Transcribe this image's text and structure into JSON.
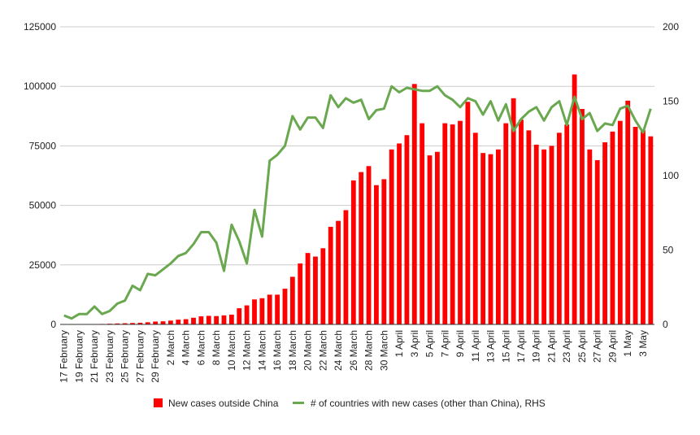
{
  "chart_data": {
    "type": "bar",
    "title": "",
    "xlabel": "",
    "ylabel": "",
    "ylabel_right": "",
    "ylim": [
      0,
      125000
    ],
    "y2lim": [
      0,
      200
    ],
    "y_ticks": [
      "0",
      "25000",
      "50000",
      "75000",
      "100000",
      "125000"
    ],
    "y2_ticks": [
      "0",
      "50",
      "100",
      "150",
      "200"
    ],
    "grid": true,
    "legend_position": "bottom",
    "categories": [
      "17 February",
      "18 February",
      "19 February",
      "20 February",
      "21 February",
      "22 February",
      "23 February",
      "24 February",
      "25 February",
      "26 February",
      "27 February",
      "28 February",
      "29 February",
      "1 March",
      "2 March",
      "3 March",
      "4 March",
      "5 March",
      "6 March",
      "7 March",
      "8 March",
      "9 March",
      "10 March",
      "11 March",
      "12 March",
      "13 March",
      "14 March",
      "15 March",
      "16 March",
      "17 March",
      "18 March",
      "19 March",
      "20 March",
      "21 March",
      "22 March",
      "23 March",
      "24 March",
      "25 March",
      "26 March",
      "27 March",
      "28 March",
      "29 March",
      "30 March",
      "31 March",
      "1 April",
      "2 April",
      "3 April",
      "4 April",
      "5 April",
      "6 April",
      "7 April",
      "8 April",
      "9 April",
      "10 April",
      "11 April",
      "12 April",
      "13 April",
      "14 April",
      "15 April",
      "16 April",
      "17 April",
      "18 April",
      "19 April",
      "20 April",
      "21 April",
      "22 April",
      "23 April",
      "24 April",
      "25 April",
      "26 April",
      "27 April",
      "28 April",
      "29 April",
      "30 April",
      "1 May",
      "2 May",
      "3 May",
      "4 May"
    ],
    "shown_x_labels": [
      "17 February",
      "19 February",
      "21 February",
      "23 February",
      "25 February",
      "27 February",
      "29 February",
      "2 March",
      "4 March",
      "6 March",
      "8 March",
      "10 March",
      "12 March",
      "14 March",
      "16 March",
      "18 March",
      "20 March",
      "22 March",
      "24 March",
      "26 March",
      "28 March",
      "30 March",
      "1 April",
      "3 April",
      "5 April",
      "7 April",
      "9 April",
      "11 April",
      "13 April",
      "15 April",
      "17 April",
      "19 April",
      "21 April",
      "23 April",
      "25 April",
      "27 April",
      "29 April",
      "1 May",
      "3 May"
    ],
    "series": [
      {
        "name": "New cases outside China",
        "type": "bar",
        "axis": "left",
        "color": "#ff0000",
        "values": [
          50,
          60,
          80,
          100,
          150,
          200,
          300,
          400,
          500,
          600,
          700,
          900,
          1200,
          1300,
          1600,
          2000,
          2200,
          2800,
          3400,
          3600,
          3500,
          3800,
          4100,
          6800,
          8000,
          10500,
          11000,
          12500,
          12500,
          15000,
          20000,
          25600,
          30000,
          28500,
          32000,
          41000,
          43500,
          48000,
          60500,
          64000,
          66500,
          58500,
          61000,
          73500,
          76000,
          79500,
          101000,
          84500,
          71000,
          72500,
          84500,
          84000,
          85500,
          93500,
          80500,
          72000,
          71500,
          73500,
          84500,
          95000,
          86000,
          81500,
          75500,
          73500,
          75000,
          80500,
          84000,
          105000,
          90500,
          73500,
          69000,
          76500,
          81000,
          85500,
          94000,
          83000,
          81500,
          79000
        ]
      },
      {
        "name": "# of countries with new cases (other than China), RHS",
        "type": "line",
        "axis": "right",
        "color": "#6aa84f",
        "values": [
          6,
          4,
          7,
          7,
          12,
          7,
          9,
          14,
          16,
          26,
          23,
          34,
          33,
          37,
          41,
          46,
          48,
          54,
          62,
          62,
          55,
          36,
          67,
          56,
          41,
          77,
          59,
          110,
          114,
          120,
          140,
          131,
          139,
          139,
          132,
          154,
          146,
          152,
          149,
          151,
          138,
          144,
          145,
          160,
          156,
          159,
          158,
          157,
          157,
          160,
          154,
          151,
          146,
          152,
          150,
          141,
          150,
          137,
          148,
          130,
          138,
          143,
          146,
          137,
          146,
          150,
          134,
          153,
          138,
          142,
          130,
          135,
          134,
          145,
          147,
          137,
          129,
          145
        ]
      }
    ]
  }
}
